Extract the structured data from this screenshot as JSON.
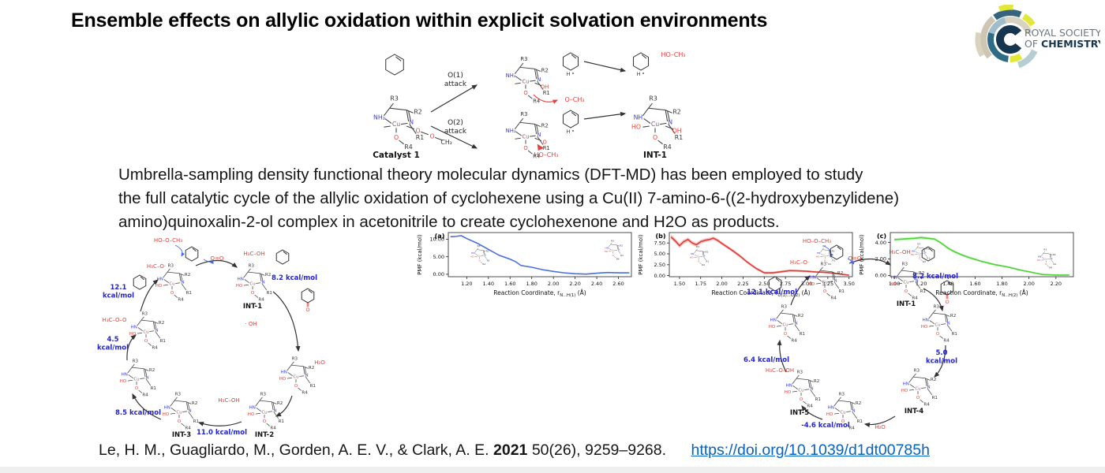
{
  "title": "Ensemble effects on allylic oxidation within explicit solvation environments",
  "logo": {
    "line1": "ROYAL SOCIETY",
    "line2a": "OF ",
    "line2b": "CHEMISTRY"
  },
  "abstract": {
    "lines": [
      "Umbrella-sampling density functional theory molecular dynamics (DFT-MD) has been employed to study",
      "the full catalytic cycle of the allylic oxidation of cyclohexene using a Cu(II) 7-amino-6-((2-hydroxybenzylidene)",
      "amino)quinoxalin-2-ol complex in acetonitrile to create cyclohexenone and H2O as products."
    ]
  },
  "scheme": {
    "catalyst_label": "Catalyst 1",
    "int_label": "INT-1",
    "path1_line1": "O(1)",
    "path1_line2": "attack",
    "path2_line1": "O(2)",
    "path2_line2": "attack",
    "product_top": "HO–CH₃",
    "methoxide": "O–CH₃",
    "methanol_bottom": "HO–CH₃",
    "radical_h": "H"
  },
  "mol": {
    "r1": "R1",
    "r2": "R2",
    "r3": "R3",
    "r4": "R4",
    "cu": "Cu",
    "n": "N",
    "hn": "HN",
    "nh2": "NH₂",
    "nh": "NH",
    "ho": "HO",
    "oh": "OH",
    "o": "O",
    "ch3": "CH₃",
    "h": "H"
  },
  "left_cycle": {
    "energies": [
      "12.1\nkcal/mol",
      "8.2 kcal/mol",
      "4.5\nkcal/mol",
      "8.5 kcal/mol",
      "11.0 kcal/mol"
    ],
    "intermediates": [
      "INT-1",
      "INT-2",
      "INT-3"
    ],
    "molecules": [
      "HO–O–CH₃",
      "O=O",
      "H₃C–OH",
      "H₃C–O·",
      "· OH",
      "H₂O",
      "H₃C–OH",
      "H₃C–O–O"
    ]
  },
  "right_cycle": {
    "energies": [
      "12.1 kcal/mol",
      "8.2 kcal/mol",
      "5.0\nkcal/mol",
      "-4.6 kcal/mol",
      "6.4 kcal/mol"
    ],
    "intermediates": [
      "INT-1",
      "INT-4",
      "INT-5"
    ],
    "molecules": [
      "HO–O–CH₃",
      "O=O",
      "H₃C–OH",
      "H₃C–O·",
      "H₃C–O–OH",
      "H₂O"
    ]
  },
  "citation": {
    "authors": "Le, H. M., Guagliardo, M., Gorden, A. E. V., & Clark, A. E.",
    "year": "2021",
    "detail": "50(26), 9259–9268.",
    "link": "https://doi.org/10.1039/d1dt00785h"
  },
  "colors": {
    "energy_blue": "#2424cc",
    "red": "#e8413c",
    "link_blue": "#0563c1"
  },
  "chart_data": [
    {
      "id": "a",
      "type": "line",
      "panel": "(a)",
      "color": "#4a6edb",
      "band_color": "#9db8ef",
      "band": [
        0.12,
        0.12
      ],
      "ylabel": "PMF (kcal/mol)",
      "xlabel_prefix": "Reaction Coordinate, r",
      "xlabel_sub": "N...H(1)",
      "xlabel_unit": " (Å)",
      "xlim": [
        1.03,
        2.72
      ],
      "ylim": [
        -0.7,
        11.9
      ],
      "xticks": [
        1.2,
        1.4,
        1.6,
        1.8,
        2.0,
        2.2,
        2.4,
        2.6
      ],
      "xtick_labels": [
        "1.20",
        "1.40",
        "1.60",
        "1.80",
        "2.00",
        "2.20",
        "2.40",
        "2.60"
      ],
      "yticks": [
        0,
        5,
        10
      ],
      "ytick_labels": [
        "0.00",
        "5.00",
        "10.00"
      ],
      "x": [
        1.05,
        1.1,
        1.15,
        1.2,
        1.3,
        1.4,
        1.5,
        1.6,
        1.65,
        1.7,
        1.8,
        1.9,
        2.0,
        2.1,
        2.2,
        2.3,
        2.4,
        2.5,
        2.6,
        2.7
      ],
      "y": [
        10.7,
        10.8,
        11.0,
        10.2,
        8.8,
        7.1,
        5.4,
        4.3,
        3.6,
        2.5,
        2.0,
        1.3,
        0.8,
        0.4,
        0.15,
        0.05,
        0.3,
        0.5,
        0.4,
        0.4
      ],
      "insets": [
        "cu-complex-reactant",
        "cu-complex-product"
      ]
    },
    {
      "id": "b",
      "type": "line",
      "panel": "(b)",
      "color": "#e03c36",
      "band_color": "#f4a09b",
      "band": [
        0.55,
        0.15
      ],
      "ylabel": "PMF (kcal/mol)",
      "xlabel_prefix": "Reaction Coordinate, r",
      "xlabel_sub": "O(1)...O(2)",
      "xlabel_unit": " (Å)",
      "xlim": [
        1.38,
        3.54
      ],
      "ylim": [
        -0.25,
        9.9
      ],
      "xticks": [
        1.5,
        1.75,
        2.0,
        2.25,
        2.5,
        2.75,
        3.0,
        3.25,
        3.5
      ],
      "xtick_labels": [
        "1.50",
        "1.75",
        "2.00",
        "2.25",
        "2.50",
        "2.75",
        "3.00",
        "3.25",
        "3.50"
      ],
      "yticks": [
        0,
        2.5,
        5,
        7.5
      ],
      "ytick_labels": [
        "0.00",
        "2.50",
        "5.00",
        "7.50"
      ],
      "x": [
        1.4,
        1.45,
        1.5,
        1.55,
        1.6,
        1.65,
        1.7,
        1.75,
        1.8,
        1.85,
        1.9,
        1.95,
        2.0,
        2.1,
        2.2,
        2.3,
        2.4,
        2.5,
        2.6,
        2.7,
        2.8,
        2.9,
        3.0,
        3.1,
        3.2,
        3.3,
        3.4,
        3.5
      ],
      "y": [
        8.9,
        8.0,
        6.9,
        7.8,
        8.3,
        7.5,
        7.1,
        7.8,
        8.1,
        8.3,
        8.6,
        8.1,
        7.4,
        6.1,
        4.7,
        3.1,
        1.7,
        0.65,
        0.65,
        0.9,
        1.15,
        1.1,
        1.0,
        0.85,
        0.75,
        0.6,
        0.35,
        0.1
      ],
      "insets": [
        "cu-complex-peroxo",
        "cu-complex-methanol-release"
      ]
    },
    {
      "id": "c",
      "type": "line",
      "panel": "(c)",
      "color": "#4fd338",
      "band_color": "#abefa0",
      "band": [
        0.2,
        0.08
      ],
      "ylabel": "PMF (kcal/mol)",
      "xlabel_prefix": "Reaction Coordinate, r",
      "xlabel_sub": "N...H(2)",
      "xlabel_unit": " (Å)",
      "xlim": [
        0.97,
        2.33
      ],
      "ylim": [
        -0.15,
        5.2
      ],
      "xticks": [
        1.0,
        1.2,
        1.4,
        1.6,
        1.8,
        2.0,
        2.2
      ],
      "xtick_labels": [
        "1.00",
        "1.20",
        "1.40",
        "1.60",
        "1.80",
        "2.00",
        "2.20"
      ],
      "yticks": [
        0,
        2,
        4
      ],
      "ytick_labels": [
        "0.00",
        "2.00",
        "4.00"
      ],
      "x": [
        1.0,
        1.05,
        1.1,
        1.15,
        1.2,
        1.25,
        1.3,
        1.35,
        1.4,
        1.45,
        1.5,
        1.55,
        1.6,
        1.65,
        1.7,
        1.75,
        1.8,
        1.85,
        1.9,
        1.95,
        2.0,
        2.05,
        2.1,
        2.2,
        2.3
      ],
      "y": [
        4.35,
        4.4,
        4.45,
        4.5,
        4.6,
        4.5,
        4.4,
        3.9,
        3.3,
        2.85,
        2.5,
        2.2,
        1.95,
        1.7,
        1.5,
        1.3,
        1.15,
        1.0,
        0.8,
        0.6,
        0.45,
        0.28,
        0.12,
        0.05,
        0.05
      ],
      "insets": [
        "cu-complex-peroxo",
        "cu-complex-product"
      ]
    }
  ]
}
